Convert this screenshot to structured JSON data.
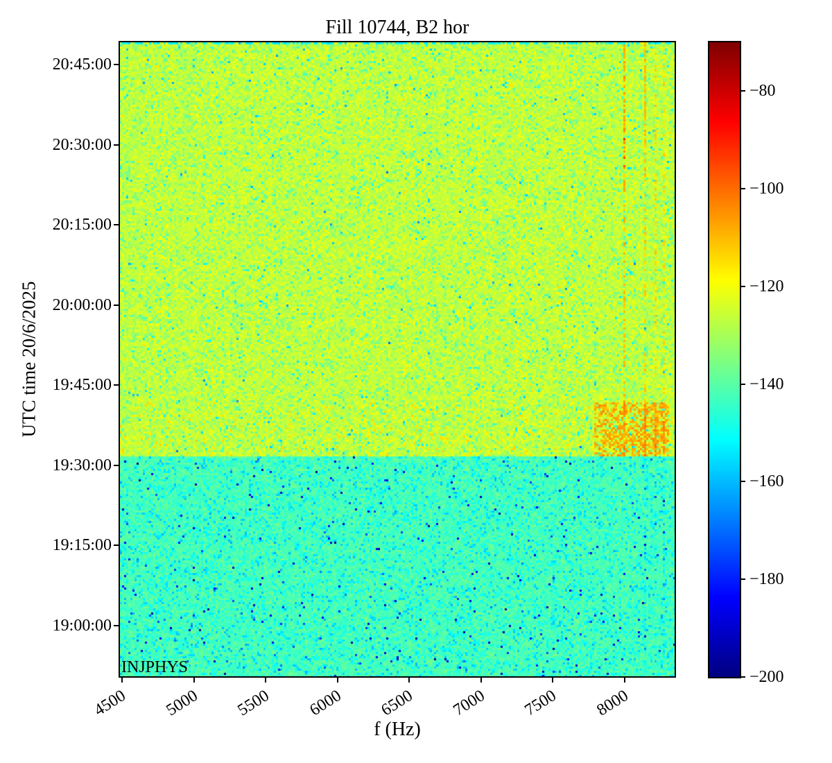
{
  "chart_data": {
    "type": "heatmap",
    "title": "Fill 10744, B2 hor",
    "xlabel": "f (Hz)",
    "ylabel": "UTC time 20/6/2025",
    "annotation": "INJPHYS",
    "x_range_hz": [
      4485,
      8350
    ],
    "x_ticks": [
      4500,
      5000,
      5500,
      6000,
      6500,
      7000,
      7500,
      8000
    ],
    "y_time_range": [
      "18:50:30",
      "20:49:10"
    ],
    "y_ticks": [
      "20:45:00",
      "20:30:00",
      "20:15:00",
      "20:00:00",
      "19:45:00",
      "19:30:00",
      "19:15:00",
      "19:00:00"
    ],
    "colorbar": {
      "colormap": "jet",
      "range_db": [
        -200,
        -70
      ],
      "ticks": [
        -80,
        -100,
        -120,
        -140,
        -160,
        -180,
        -200
      ]
    },
    "background_change_time": "19:31:45",
    "regions": [
      {
        "name": "pre-change background",
        "time_range": [
          "18:50:30",
          "19:31:45"
        ],
        "mean_db": -142,
        "noise_db": 7,
        "appearance": "green with cyan and sparse blue specks"
      },
      {
        "name": "post-change background",
        "time_range": [
          "19:31:45",
          "20:49:10"
        ],
        "mean_db": -126,
        "noise_db": 7,
        "appearance": "yellow-green with sparse orange flecks"
      },
      {
        "name": "excitation block",
        "time_range": [
          "19:32:00",
          "19:42:00"
        ],
        "f_range_hz": [
          7790,
          8315
        ],
        "mean_db": -104,
        "appearance": "dense orange dashed streaks"
      },
      {
        "name": "top streak zone",
        "time_range": [
          "20:22:30",
          "20:49:10"
        ],
        "f_range_hz": [
          7990,
          8150
        ],
        "mean_db": -104,
        "appearance": "dotted orange vertical lines"
      },
      {
        "name": "red dot cluster",
        "time_range": [
          "20:24:00",
          "20:33:00"
        ],
        "f_range_hz": [
          7990,
          8006
        ],
        "mean_db": -90
      }
    ],
    "spectral_lines_hz": [
      7998,
      8143,
      8215,
      8273
    ],
    "key_colors": {
      "upper_bg": "#c8e640",
      "lower_bg": "#5ce896",
      "streak": "#ff8c00",
      "hot": "#d40000",
      "cbar_top": "#800000",
      "cbar_bottom": "#000080"
    }
  }
}
